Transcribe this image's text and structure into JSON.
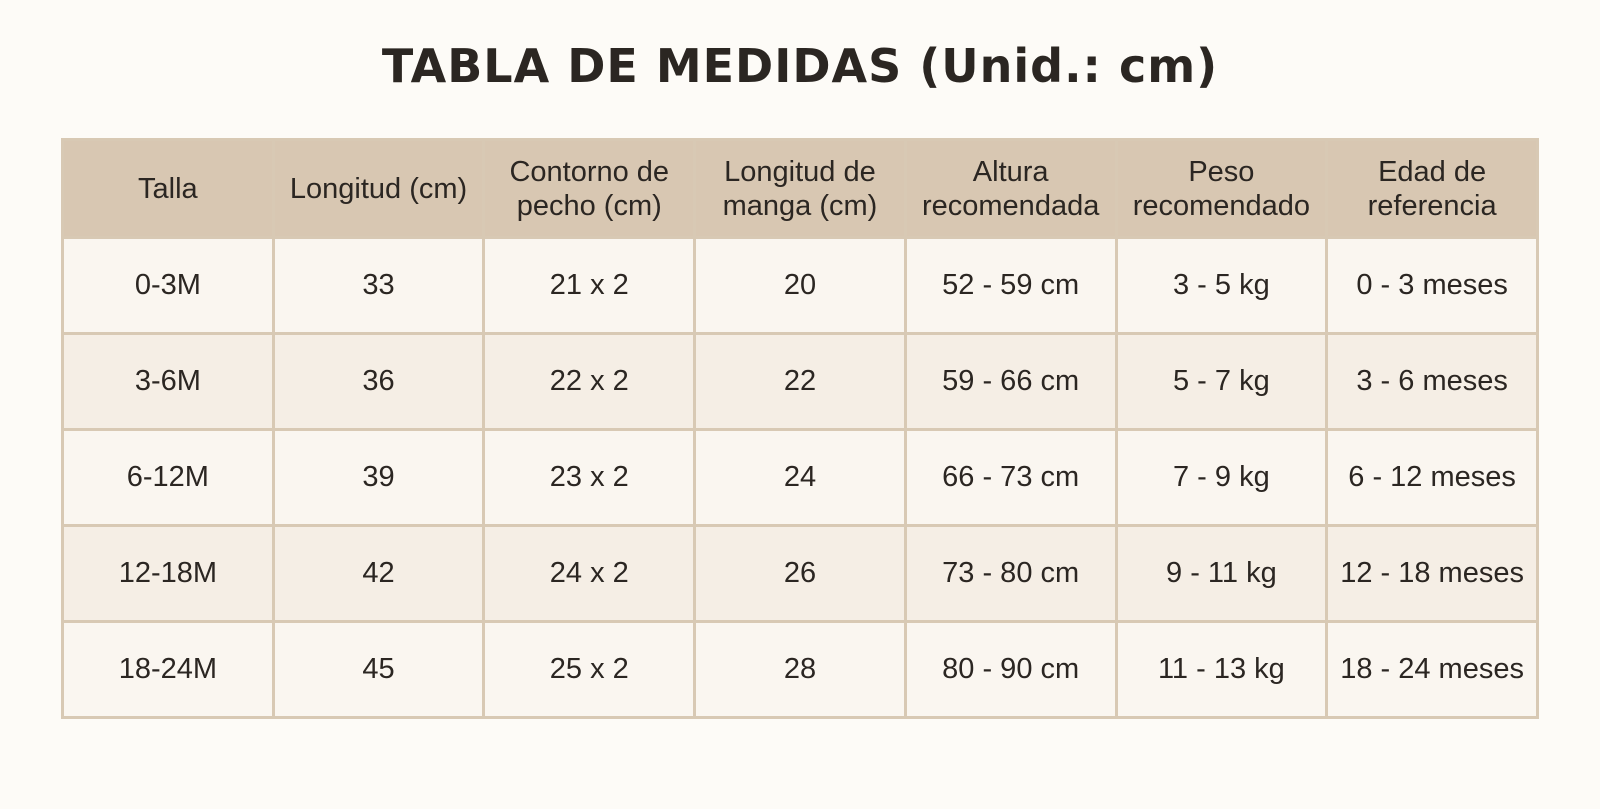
{
  "title": "TABLA DE MEDIDAS (Unid.: cm)",
  "table": {
    "header": [
      "Talla",
      "Longitud (cm)",
      "Contorno de pecho (cm)",
      "Longitud de manga (cm)",
      "Altura recomendada",
      "Peso recomendado",
      "Edad de referencia"
    ],
    "rows": [
      [
        "0-3M",
        "33",
        "21 x 2",
        "20",
        "52 - 59 cm",
        "3 - 5 kg",
        "0 - 3 meses"
      ],
      [
        "3-6M",
        "36",
        "22 x 2",
        "22",
        "59 - 66 cm",
        "5 - 7 kg",
        "3 - 6 meses"
      ],
      [
        "6-12M",
        "39",
        "23 x 2",
        "24",
        "66 - 73 cm",
        "7 - 9 kg",
        "6 - 12 meses"
      ],
      [
        "12-18M",
        "42",
        "24 x 2",
        "26",
        "73 - 80 cm",
        "9 - 11 kg",
        "12 - 18 meses"
      ],
      [
        "18-24M",
        "45",
        "25 x 2",
        "28",
        "80 - 90 cm",
        "11 - 13 kg",
        "18 - 24 meses"
      ]
    ]
  }
}
